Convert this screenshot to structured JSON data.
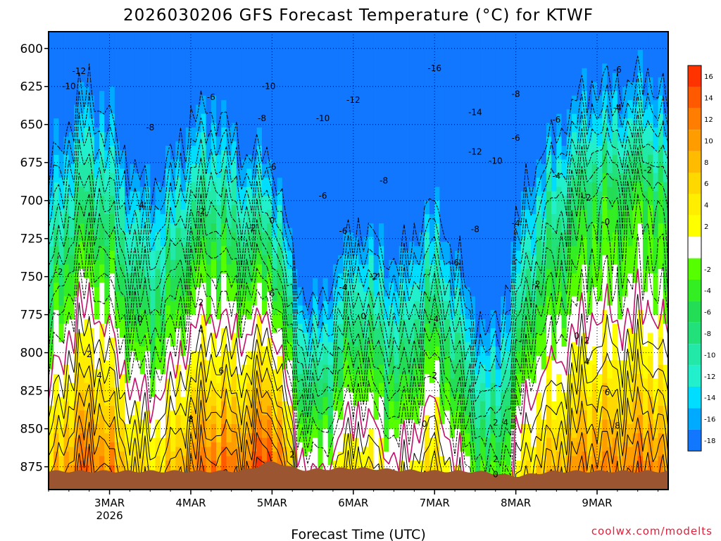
{
  "title": "2026030206 GFS Forecast Temperature (°C) for KTWF",
  "xlabel": "Forecast Time (UTC)",
  "credit": "coolwx.com/modelts",
  "colors": {
    "background": "#ffffff",
    "terrain": "#9b5530",
    "zero_line": "#c0106a",
    "frame": "#000000",
    "credit": "#e0203a"
  },
  "chart_data": {
    "type": "heatmap",
    "title": "2026030206 GFS Forecast Temperature (°C) for KTWF",
    "xlabel": "Forecast Time (UTC)",
    "ylabel": "",
    "y_axis": {
      "reversed": true,
      "ylim": [
        890,
        589
      ],
      "ticks": [
        600,
        625,
        650,
        675,
        700,
        725,
        750,
        775,
        800,
        825,
        850,
        875
      ]
    },
    "x_axis": {
      "xlim": [
        "2026-03-02 06Z",
        "2026-03-09 21Z"
      ],
      "ticks": [
        {
          "label": "3MAR",
          "sublabel": "2026",
          "value": "2026-03-03 00Z"
        },
        {
          "label": "4MAR",
          "sublabel": "",
          "value": "2026-03-04 00Z"
        },
        {
          "label": "5MAR",
          "sublabel": "",
          "value": "2026-03-05 00Z"
        },
        {
          "label": "6MAR",
          "sublabel": "",
          "value": "2026-03-06 00Z"
        },
        {
          "label": "7MAR",
          "sublabel": "",
          "value": "2026-03-07 00Z"
        },
        {
          "label": "8MAR",
          "sublabel": "",
          "value": "2026-03-08 00Z"
        },
        {
          "label": "9MAR",
          "sublabel": "",
          "value": "2026-03-09 00Z"
        }
      ]
    },
    "grid": "dotted",
    "colorbar": {
      "position": "right",
      "bins": [
        {
          "label": "16",
          "color": "#ff3300"
        },
        {
          "label": "14",
          "color": "#ff5a00"
        },
        {
          "label": "12",
          "color": "#ff7d00"
        },
        {
          "label": "10",
          "color": "#ff9d00"
        },
        {
          "label": "8",
          "color": "#ffbb00"
        },
        {
          "label": "6",
          "color": "#ffd800"
        },
        {
          "label": "4",
          "color": "#ffee00"
        },
        {
          "label": "2",
          "color": "#ffff00"
        },
        {
          "label": "",
          "color": "#ffffff"
        },
        {
          "label": "-2",
          "color": "#55ff00"
        },
        {
          "label": "-4",
          "color": "#33ee22"
        },
        {
          "label": "-6",
          "color": "#22dd55"
        },
        {
          "label": "-8",
          "color": "#22e07a"
        },
        {
          "label": "-10",
          "color": "#22e8a8"
        },
        {
          "label": "-12",
          "color": "#22f0cc"
        },
        {
          "label": "-14",
          "color": "#00ddff"
        },
        {
          "label": "-16",
          "color": "#00aaff"
        },
        {
          "label": "-18",
          "color": "#1177ff"
        }
      ]
    },
    "contour_labels": [
      {
        "text": "-12",
        "t": "2026-03-02 15Z",
        "p": 615
      },
      {
        "text": "-10",
        "t": "2026-03-02 12Z",
        "p": 625
      },
      {
        "text": "-6",
        "t": "2026-03-04 06Z",
        "p": 632
      },
      {
        "text": "-8",
        "t": "2026-03-03 12Z",
        "p": 652
      },
      {
        "text": "-10",
        "t": "2026-03-04 23Z",
        "p": 625
      },
      {
        "text": "-8",
        "t": "2026-03-04 21Z",
        "p": 646
      },
      {
        "text": "-10",
        "t": "2026-03-05 15Z",
        "p": 646
      },
      {
        "text": "-12",
        "t": "2026-03-06 00Z",
        "p": 634
      },
      {
        "text": "-16",
        "t": "2026-03-07 00Z",
        "p": 613
      },
      {
        "text": "-14",
        "t": "2026-03-07 12Z",
        "p": 642
      },
      {
        "text": "-12",
        "t": "2026-03-07 12Z",
        "p": 668
      },
      {
        "text": "-10",
        "t": "2026-03-07 18Z",
        "p": 674
      },
      {
        "text": "-8",
        "t": "2026-03-08 00Z",
        "p": 630
      },
      {
        "text": "-6",
        "t": "2026-03-08 00Z",
        "p": 659
      },
      {
        "text": "-6",
        "t": "2026-03-08 12Z",
        "p": 647
      },
      {
        "text": "-6",
        "t": "2026-03-09 06Z",
        "p": 614
      },
      {
        "text": "-4",
        "t": "2026-03-09 06Z",
        "p": 639
      },
      {
        "text": "-6",
        "t": "2026-03-05 00Z",
        "p": 678
      },
      {
        "text": "-8",
        "t": "2026-03-06 09Z",
        "p": 687
      },
      {
        "text": "-6",
        "t": "2026-03-05 15Z",
        "p": 697
      },
      {
        "text": "-6",
        "t": "2026-03-05 21Z",
        "p": 720
      },
      {
        "text": "-4",
        "t": "2026-03-03 09Z",
        "p": 703
      },
      {
        "text": "-2",
        "t": "2026-03-04 03Z",
        "p": 707
      },
      {
        "text": "-2",
        "t": "2026-03-04 18Z",
        "p": 718
      },
      {
        "text": "0",
        "t": "2026-03-05 00Z",
        "p": 713
      },
      {
        "text": "-2",
        "t": "2026-03-02 09Z",
        "p": 747
      },
      {
        "text": "-6",
        "t": "2026-03-07 06Z",
        "p": 741
      },
      {
        "text": "-8",
        "t": "2026-03-07 12Z",
        "p": 719
      },
      {
        "text": "-4",
        "t": "2026-03-08 00Z",
        "p": 715
      },
      {
        "text": "-4",
        "t": "2026-03-08 12Z",
        "p": 684
      },
      {
        "text": "-2",
        "t": "2026-03-08 21Z",
        "p": 698
      },
      {
        "text": "-2",
        "t": "2026-03-09 15Z",
        "p": 680
      },
      {
        "text": "0",
        "t": "2026-03-09 03Z",
        "p": 714
      },
      {
        "text": "-4",
        "t": "2026-03-05 21Z",
        "p": 757
      },
      {
        "text": "-2",
        "t": "2026-03-06 06Z",
        "p": 750
      },
      {
        "text": "-4",
        "t": "2026-03-07 00Z",
        "p": 778
      },
      {
        "text": "-2",
        "t": "2026-03-08 06Z",
        "p": 755
      },
      {
        "text": "2",
        "t": "2026-03-04 03Z",
        "p": 767
      },
      {
        "text": "0",
        "t": "2026-03-03 09Z",
        "p": 778
      },
      {
        "text": "0",
        "t": "2026-03-06 03Z",
        "p": 776
      },
      {
        "text": "2",
        "t": "2026-03-02 18Z",
        "p": 801
      },
      {
        "text": "4",
        "t": "2026-03-04 03Z",
        "p": 785
      },
      {
        "text": "6",
        "t": "2026-03-05 00Z",
        "p": 761
      },
      {
        "text": "4",
        "t": "2026-03-02 21Z",
        "p": 815
      },
      {
        "text": "6",
        "t": "2026-03-04 09Z",
        "p": 812
      },
      {
        "text": "8",
        "t": "2026-03-04 00Z",
        "p": 844
      },
      {
        "text": "0",
        "t": "2026-03-08 18Z",
        "p": 789
      },
      {
        "text": "2",
        "t": "2026-03-08 21Z",
        "p": 792
      },
      {
        "text": "4",
        "t": "2026-03-08 21Z",
        "p": 806
      },
      {
        "text": "6",
        "t": "2026-03-09 03Z",
        "p": 826
      },
      {
        "text": "8",
        "t": "2026-03-09 06Z",
        "p": 848
      },
      {
        "text": "2",
        "t": "2026-03-07 00Z",
        "p": 815
      },
      {
        "text": "0",
        "t": "2026-03-06 21Z",
        "p": 847
      },
      {
        "text": "2",
        "t": "2026-03-07 18Z",
        "p": 846
      },
      {
        "text": "4",
        "t": "2026-03-07 21Z",
        "p": 846
      },
      {
        "text": "2",
        "t": "2026-03-05 06Z",
        "p": 867
      },
      {
        "text": "2",
        "t": "2026-03-07 18Z",
        "p": 870
      },
      {
        "text": "0",
        "t": "2026-03-07 18Z",
        "p": 880
      }
    ]
  }
}
